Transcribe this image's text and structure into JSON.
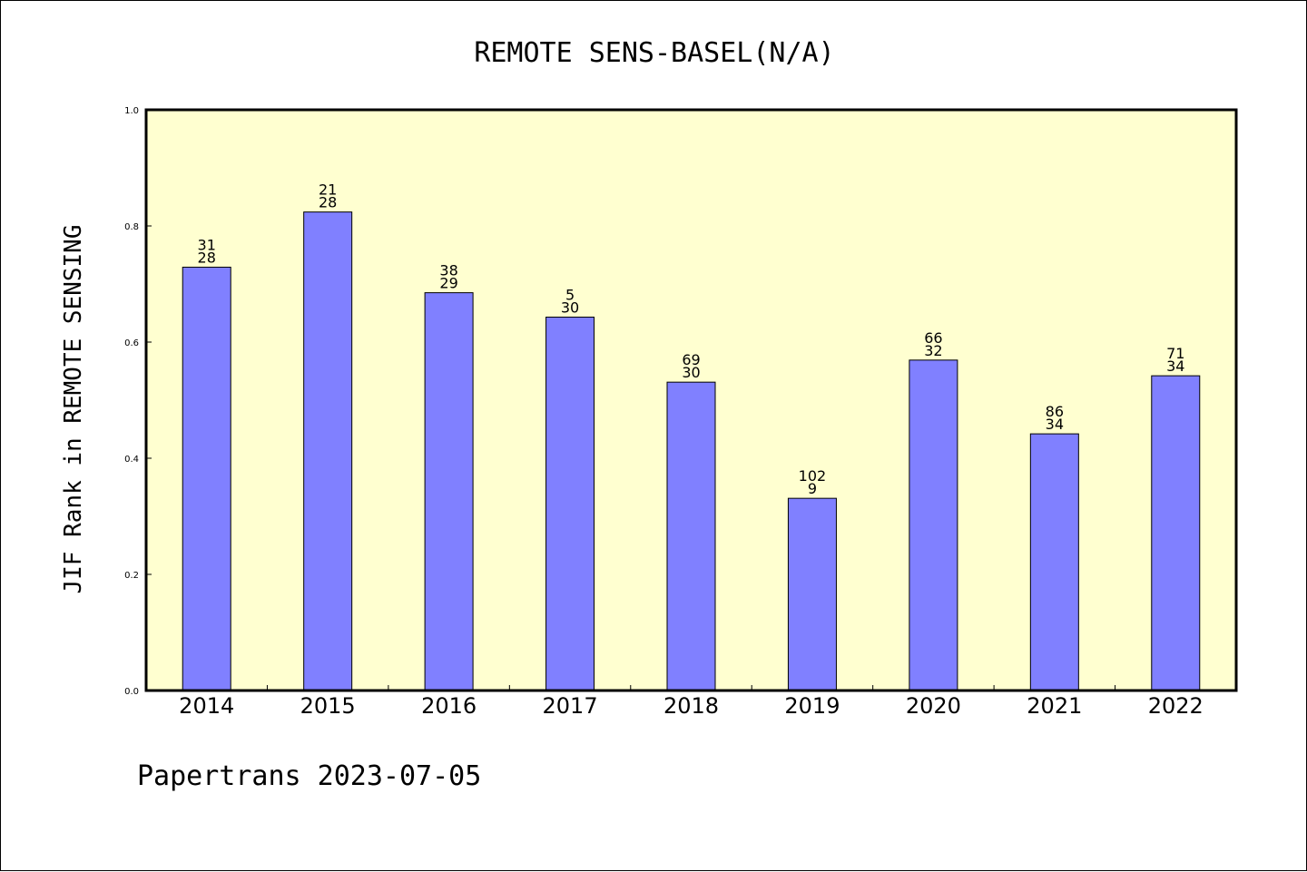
{
  "chart_data": {
    "type": "bar",
    "title": "REMOTE SENS-BASEL(N/A)",
    "ylabel": "JIF Rank in REMOTE SENSING",
    "xlabel": "",
    "ylim": [
      0,
      1.0
    ],
    "yticks": [
      "0.0",
      "0.2",
      "0.4",
      "0.6",
      "0.8",
      "1.0"
    ],
    "categories": [
      "2014",
      "2015",
      "2016",
      "2017",
      "2018",
      "2019",
      "2020",
      "2021",
      "2022"
    ],
    "values": [
      0.729,
      0.824,
      0.685,
      0.643,
      0.531,
      0.331,
      0.569,
      0.442,
      0.542
    ],
    "labels_top": [
      "31",
      "21",
      "38",
      "5",
      "69",
      "102",
      "66",
      "86",
      "71"
    ],
    "labels_bottom": [
      "28",
      "28",
      "29",
      "30",
      "30",
      "9",
      "32",
      "34",
      "34"
    ],
    "grid": false,
    "legend": "none",
    "colors": {
      "plot_background": "#ffffd0",
      "bar_fill": "#8080ff",
      "bar_stroke": "#000000"
    }
  },
  "footer": "Papertrans 2023-07-05"
}
